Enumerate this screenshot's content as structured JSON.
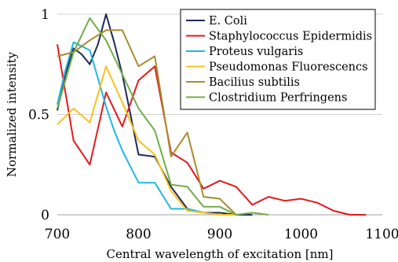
{
  "chart_data": {
    "type": "line",
    "xlabel": "Central wavelength of excitation [nm]",
    "ylabel": "Normalized intensity",
    "xlim": [
      700,
      1100
    ],
    "ylim": [
      0,
      1
    ],
    "x_ticks": [
      "700",
      "800",
      "900",
      "1000",
      "1100"
    ],
    "y_ticks": [
      "0",
      "0.5",
      "1"
    ],
    "grid": "horizontal",
    "legend_position": "top-right",
    "series": [
      {
        "name": "E. Coli",
        "color": "#1f2a56",
        "x": [
          700,
          710,
          720,
          730,
          740,
          750,
          760,
          770,
          780,
          790,
          800,
          820,
          840,
          860,
          880,
          900,
          920,
          940
        ],
        "y": [
          0.52,
          0.7,
          0.83,
          0.8,
          0.75,
          0.85,
          1.0,
          0.86,
          0.7,
          0.5,
          0.3,
          0.29,
          0.14,
          0.03,
          0.01,
          0.01,
          0.0,
          0.0
        ]
      },
      {
        "name": "Staphylococcus Epidermidis",
        "color": "#e31a1c",
        "x": [
          700,
          720,
          740,
          760,
          780,
          800,
          820,
          840,
          860,
          880,
          890,
          900,
          920,
          940,
          960,
          980,
          1000,
          1020,
          1040,
          1060,
          1080
        ],
        "y": [
          0.85,
          0.37,
          0.25,
          0.61,
          0.44,
          0.67,
          0.74,
          0.31,
          0.26,
          0.13,
          0.15,
          0.17,
          0.14,
          0.05,
          0.09,
          0.07,
          0.08,
          0.06,
          0.02,
          0.0,
          0.0
        ]
      },
      {
        "name": "Proteus vulgaris",
        "color": "#1fb8e0",
        "x": [
          700,
          710,
          720,
          730,
          740,
          750,
          760,
          770,
          780,
          790,
          800,
          820,
          840,
          860,
          880,
          900,
          920
        ],
        "y": [
          0.55,
          0.72,
          0.86,
          0.84,
          0.82,
          0.68,
          0.54,
          0.42,
          0.32,
          0.24,
          0.16,
          0.16,
          0.03,
          0.03,
          0.01,
          0.0,
          0.0
        ]
      },
      {
        "name": "Pseudomonas Fluorescencs",
        "color": "#f7c21e",
        "x": [
          700,
          720,
          740,
          760,
          780,
          800,
          820,
          840,
          860,
          880,
          900,
          920
        ],
        "y": [
          0.45,
          0.53,
          0.46,
          0.74,
          0.56,
          0.37,
          0.3,
          0.12,
          0.02,
          0.01,
          0.0,
          0.0
        ]
      },
      {
        "name": "Bacilius subtilis",
        "color": "#a88c2e",
        "x": [
          700,
          720,
          740,
          760,
          780,
          800,
          820,
          840,
          860,
          880,
          900,
          920
        ],
        "y": [
          0.79,
          0.81,
          0.87,
          0.92,
          0.92,
          0.74,
          0.79,
          0.29,
          0.41,
          0.09,
          0.08,
          0.0
        ]
      },
      {
        "name": "Clostridium Perfringens",
        "color": "#70ad47",
        "x": [
          700,
          720,
          740,
          760,
          780,
          800,
          820,
          840,
          860,
          880,
          900,
          920,
          940,
          960
        ],
        "y": [
          0.53,
          0.81,
          0.98,
          0.87,
          0.7,
          0.53,
          0.42,
          0.15,
          0.14,
          0.04,
          0.04,
          0.0,
          0.01,
          0.0
        ]
      }
    ]
  }
}
